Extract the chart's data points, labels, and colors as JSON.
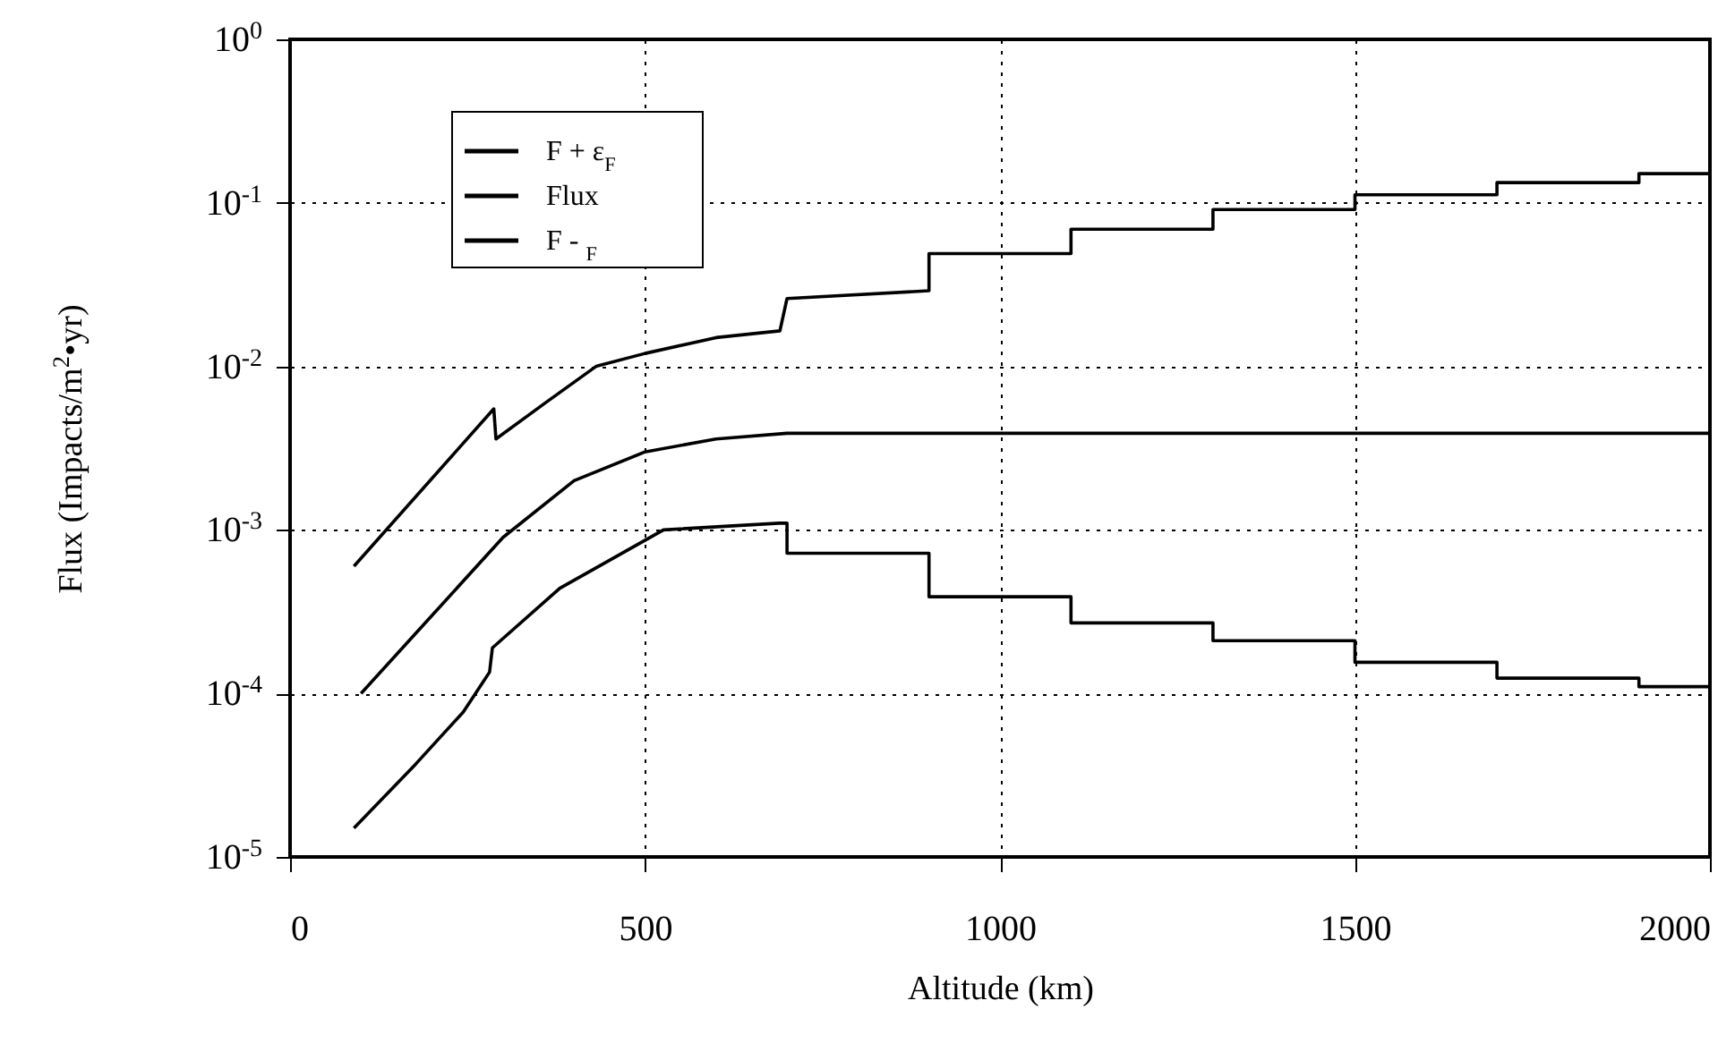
{
  "chart_data": {
    "type": "line",
    "xlabel": "Altitude (km)",
    "ylabel": "Flux (Impacts/m$^{2}$•yr)",
    "series": [
      {
        "name": "F + ε$_{F}$",
        "color": "#000000",
        "x": [
          90,
          287,
          290,
          360,
          431,
          500,
          600,
          690,
          700,
          900,
          900,
          1100,
          1100,
          1300,
          1300,
          1500,
          1500,
          1700,
          1700,
          1900,
          1900,
          2000
        ],
        "values": [
          0.0006,
          0.0055,
          0.0036,
          0.006,
          0.01,
          0.012,
          0.015,
          0.0165,
          0.026,
          0.029,
          0.049,
          0.049,
          0.069,
          0.069,
          0.091,
          0.091,
          0.112,
          0.112,
          0.133,
          0.133,
          0.151,
          0.151
        ]
      },
      {
        "name": "Flux",
        "color": "#000000",
        "x": [
          100,
          200,
          300,
          400,
          500,
          600,
          700,
          2000
        ],
        "values": [
          0.0001,
          0.0003,
          0.0009,
          0.002,
          0.003,
          0.0036,
          0.0039,
          0.0039
        ]
      },
      {
        "name": "F - $_{F}$",
        "color": "#000000",
        "x": [
          90,
          177,
          244,
          281,
          285,
          380,
          526,
          689,
          700,
          700,
          900,
          900,
          1100,
          1100,
          1300,
          1300,
          1500,
          1500,
          1700,
          1700,
          1900,
          1900,
          2000
        ],
        "values": [
          1.5e-05,
          3.7e-05,
          7.7e-05,
          0.000135,
          0.00019,
          0.00044,
          0.001,
          0.0011,
          0.0011,
          0.00072,
          0.00072,
          0.00039,
          0.00039,
          0.00027,
          0.00027,
          0.00021,
          0.00021,
          0.000155,
          0.000155,
          0.000124,
          0.000124,
          0.00011,
          0.00011
        ]
      }
    ],
    "xlim": [
      0,
      2000
    ],
    "xticks": [
      0,
      500,
      1000,
      1500,
      2000
    ],
    "ylim": [
      1e-05,
      1
    ],
    "yticks": [
      {
        "value": 1e-05,
        "label": "10$^{-5}$"
      },
      {
        "value": 0.0001,
        "label": "10$^{-4}$"
      },
      {
        "value": 0.001,
        "label": "10$^{-3}$"
      },
      {
        "value": 0.01,
        "label": "10$^{-2}$"
      },
      {
        "value": 0.1,
        "label": "10$^{-1}$"
      },
      {
        "value": 1,
        "label": "10$^{0}$"
      }
    ],
    "log": true,
    "grid": true,
    "legend": "top left",
    "line_style": "solid"
  }
}
